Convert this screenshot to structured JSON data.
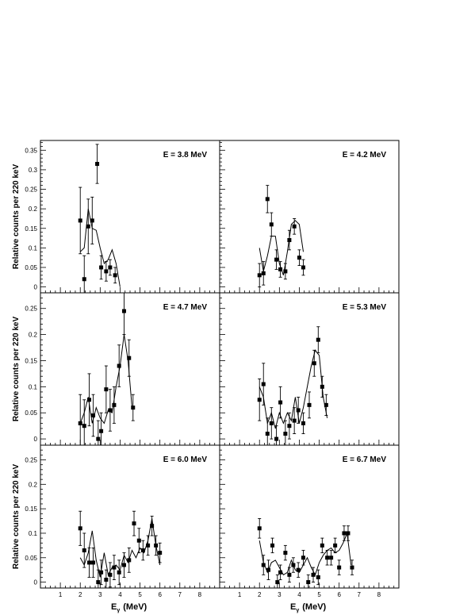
{
  "chart_data": [
    {
      "type": "scatter",
      "title": "E = 3.8 MeV",
      "ylabel": "Relative counts per 220 keV",
      "xlim": [
        0,
        9
      ],
      "ylim": [
        -0.015,
        0.375
      ],
      "yticks": [
        "0",
        "0.05",
        "0.1",
        "0.15",
        "0.2",
        "0.25",
        "0.3",
        "0.35"
      ],
      "ytick_values": [
        0,
        0.05,
        0.1,
        0.15,
        0.2,
        0.25,
        0.3,
        0.35
      ],
      "points": {
        "x": [
          2.0,
          2.2,
          2.4,
          2.6,
          2.85,
          3.05,
          3.3,
          3.5,
          3.75
        ],
        "y": [
          0.17,
          0.02,
          0.155,
          0.17,
          0.315,
          0.05,
          0.04,
          0.05,
          0.03
        ],
        "err": [
          0.085,
          0.06,
          0.07,
          0.06,
          0.05,
          0.03,
          0.025,
          0.02,
          0.02
        ]
      },
      "curve": {
        "x": [
          2.0,
          2.2,
          2.4,
          2.6,
          2.8,
          3.0,
          3.2,
          3.4,
          3.6,
          3.8,
          4.0
        ],
        "y": [
          0.09,
          0.1,
          0.2,
          0.15,
          0.145,
          0.1,
          0.06,
          0.07,
          0.095,
          0.06,
          0.0
        ]
      }
    },
    {
      "type": "scatter",
      "title": "E = 4.2 MeV",
      "xlim": [
        0,
        9
      ],
      "ylim": [
        -0.015,
        0.375
      ],
      "points": {
        "x": [
          2.0,
          2.2,
          2.4,
          2.6,
          2.85,
          3.05,
          3.3,
          3.5,
          3.75,
          4.0,
          4.2
        ],
        "y": [
          0.03,
          0.035,
          0.225,
          0.16,
          0.07,
          0.045,
          0.04,
          0.12,
          0.155,
          0.075,
          0.05
        ],
        "err": [
          0.03,
          0.03,
          0.035,
          0.03,
          0.025,
          0.02,
          0.02,
          0.025,
          0.02,
          0.02,
          0.02
        ]
      },
      "curve": {
        "x": [
          2.0,
          2.2,
          2.4,
          2.6,
          2.8,
          3.0,
          3.2,
          3.4,
          3.6,
          3.8,
          4.0,
          4.2
        ],
        "y": [
          0.1,
          0.04,
          0.08,
          0.13,
          0.13,
          0.06,
          0.03,
          0.09,
          0.16,
          0.17,
          0.16,
          0.09
        ]
      }
    },
    {
      "type": "scatter",
      "title": "E = 4.7 MeV",
      "ylabel": "Relative counts per 220 keV",
      "xlim": [
        0,
        9
      ],
      "ylim": [
        -0.012,
        0.28
      ],
      "yticks": [
        "0",
        "0.05",
        "0.1",
        "0.15",
        "0.2",
        "0.25"
      ],
      "ytick_values": [
        0,
        0.05,
        0.1,
        0.15,
        0.2,
        0.25
      ],
      "points": {
        "x": [
          2.0,
          2.2,
          2.45,
          2.65,
          2.9,
          3.05,
          3.3,
          3.5,
          3.7,
          3.95,
          4.2,
          4.45,
          4.65
        ],
        "y": [
          0.03,
          0.025,
          0.075,
          0.045,
          0.0,
          0.015,
          0.095,
          0.055,
          0.065,
          0.14,
          0.245,
          0.155,
          0.06
        ],
        "err": [
          0.055,
          0.05,
          0.05,
          0.04,
          0.035,
          0.035,
          0.045,
          0.04,
          0.035,
          0.04,
          0.045,
          0.035,
          0.025
        ]
      },
      "curve": {
        "x": [
          2.0,
          2.2,
          2.4,
          2.6,
          2.8,
          3.0,
          3.2,
          3.4,
          3.6,
          3.8,
          4.0,
          4.2,
          4.4,
          4.6
        ],
        "y": [
          0.03,
          0.05,
          0.08,
          0.03,
          0.06,
          0.04,
          0.03,
          0.055,
          0.05,
          0.1,
          0.14,
          0.2,
          0.15,
          0.06
        ]
      }
    },
    {
      "type": "scatter",
      "title": "E = 5.3 MeV",
      "xlim": [
        0,
        9
      ],
      "ylim": [
        -0.012,
        0.28
      ],
      "points": {
        "x": [
          2.0,
          2.2,
          2.4,
          2.6,
          2.85,
          3.05,
          3.3,
          3.5,
          3.75,
          3.95,
          4.2,
          4.5,
          4.75,
          4.95,
          5.15,
          5.35
        ],
        "y": [
          0.075,
          0.105,
          0.01,
          0.03,
          0.0,
          0.07,
          0.01,
          0.025,
          0.035,
          0.055,
          0.03,
          0.065,
          0.145,
          0.19,
          0.1,
          0.065
        ],
        "err": [
          0.04,
          0.04,
          0.03,
          0.03,
          0.025,
          0.03,
          0.025,
          0.025,
          0.025,
          0.025,
          0.02,
          0.025,
          0.025,
          0.025,
          0.02,
          0.02
        ]
      },
      "curve": {
        "x": [
          2.0,
          2.2,
          2.4,
          2.6,
          2.8,
          3.0,
          3.2,
          3.4,
          3.6,
          3.8,
          4.0,
          4.2,
          4.4,
          4.6,
          4.8,
          5.0,
          5.2,
          5.4
        ],
        "y": [
          0.1,
          0.08,
          0.03,
          0.05,
          0.02,
          0.05,
          0.03,
          0.05,
          0.035,
          0.08,
          0.03,
          0.06,
          0.1,
          0.14,
          0.17,
          0.16,
          0.08,
          0.04
        ]
      }
    },
    {
      "type": "scatter",
      "title": "E = 6.0 MeV",
      "ylabel": "Relative counts per 220 keV",
      "xlabel": "E",
      "xlabel_sub": "γ",
      "xlabel_unit": "(MeV)",
      "xlim": [
        0,
        9
      ],
      "ylim": [
        -0.012,
        0.28
      ],
      "yticks": [
        "0",
        "0.05",
        "0.1",
        "0.15",
        "0.2",
        "0.25"
      ],
      "ytick_values": [
        0,
        0.05,
        0.1,
        0.15,
        0.2,
        0.25
      ],
      "xticks": [
        "1",
        "2",
        "3",
        "4",
        "5",
        "6",
        "7",
        "8"
      ],
      "xtick_values": [
        1,
        2,
        3,
        4,
        5,
        6,
        7,
        8
      ],
      "points": {
        "x": [
          2.0,
          2.2,
          2.45,
          2.65,
          2.9,
          3.05,
          3.3,
          3.5,
          3.7,
          3.95,
          4.2,
          4.45,
          4.7,
          4.95,
          5.15,
          5.4,
          5.6,
          5.8,
          6.0
        ],
        "y": [
          0.11,
          0.065,
          0.04,
          0.04,
          0.0,
          0.02,
          0.005,
          0.015,
          0.03,
          0.02,
          0.035,
          0.045,
          0.12,
          0.085,
          0.065,
          0.075,
          0.115,
          0.075,
          0.06
        ],
        "err": [
          0.035,
          0.035,
          0.03,
          0.03,
          0.025,
          0.025,
          0.02,
          0.025,
          0.025,
          0.025,
          0.025,
          0.025,
          0.025,
          0.025,
          0.02,
          0.02,
          0.02,
          0.02,
          0.02
        ]
      },
      "curve": {
        "x": [
          2.0,
          2.2,
          2.4,
          2.6,
          2.8,
          3.0,
          3.2,
          3.4,
          3.6,
          3.8,
          4.0,
          4.2,
          4.4,
          4.6,
          4.8,
          5.0,
          5.2,
          5.4,
          5.6,
          5.8,
          6.0
        ],
        "y": [
          0.05,
          0.035,
          0.06,
          0.105,
          0.045,
          0.01,
          0.06,
          0.015,
          0.03,
          0.035,
          0.025,
          0.055,
          0.04,
          0.065,
          0.05,
          0.07,
          0.06,
          0.085,
          0.13,
          0.075,
          0.035
        ]
      }
    },
    {
      "type": "scatter",
      "title": "E = 6.7 MeV",
      "xlabel": "E",
      "xlabel_sub": "γ",
      "xlabel_unit": "(MeV)",
      "xlim": [
        0,
        9
      ],
      "ylim": [
        -0.012,
        0.28
      ],
      "xticks": [
        "1",
        "2",
        "3",
        "4",
        "5",
        "6",
        "7",
        "8"
      ],
      "xtick_values": [
        1,
        2,
        3,
        4,
        5,
        6,
        7,
        8
      ],
      "points": {
        "x": [
          2.0,
          2.2,
          2.45,
          2.65,
          2.9,
          3.05,
          3.3,
          3.5,
          3.7,
          3.95,
          4.2,
          4.45,
          4.7,
          4.95,
          5.15,
          5.4,
          5.6,
          5.8,
          6.0,
          6.25,
          6.45,
          6.65
        ],
        "y": [
          0.11,
          0.035,
          0.025,
          0.075,
          0.0,
          0.02,
          0.06,
          0.015,
          0.035,
          0.025,
          0.05,
          0.0,
          0.015,
          0.01,
          0.075,
          0.05,
          0.05,
          0.075,
          0.03,
          0.1,
          0.1,
          0.03
        ],
        "err": [
          0.02,
          0.02,
          0.02,
          0.015,
          0.015,
          0.015,
          0.015,
          0.015,
          0.015,
          0.015,
          0.015,
          0.015,
          0.015,
          0.015,
          0.015,
          0.015,
          0.015,
          0.015,
          0.015,
          0.015,
          0.015,
          0.015
        ]
      },
      "curve": {
        "x": [
          2.0,
          2.2,
          2.4,
          2.6,
          2.8,
          3.0,
          3.2,
          3.4,
          3.6,
          3.8,
          4.0,
          4.2,
          4.4,
          4.6,
          4.8,
          5.0,
          5.2,
          5.4,
          5.6,
          5.8,
          6.0,
          6.2,
          6.4,
          6.6
        ],
        "y": [
          0.085,
          0.04,
          0.02,
          0.04,
          0.045,
          0.03,
          0.015,
          0.02,
          0.045,
          0.025,
          0.02,
          0.035,
          0.05,
          0.03,
          0.015,
          0.04,
          0.055,
          0.065,
          0.07,
          0.06,
          0.065,
          0.08,
          0.1,
          0.035
        ]
      }
    }
  ]
}
